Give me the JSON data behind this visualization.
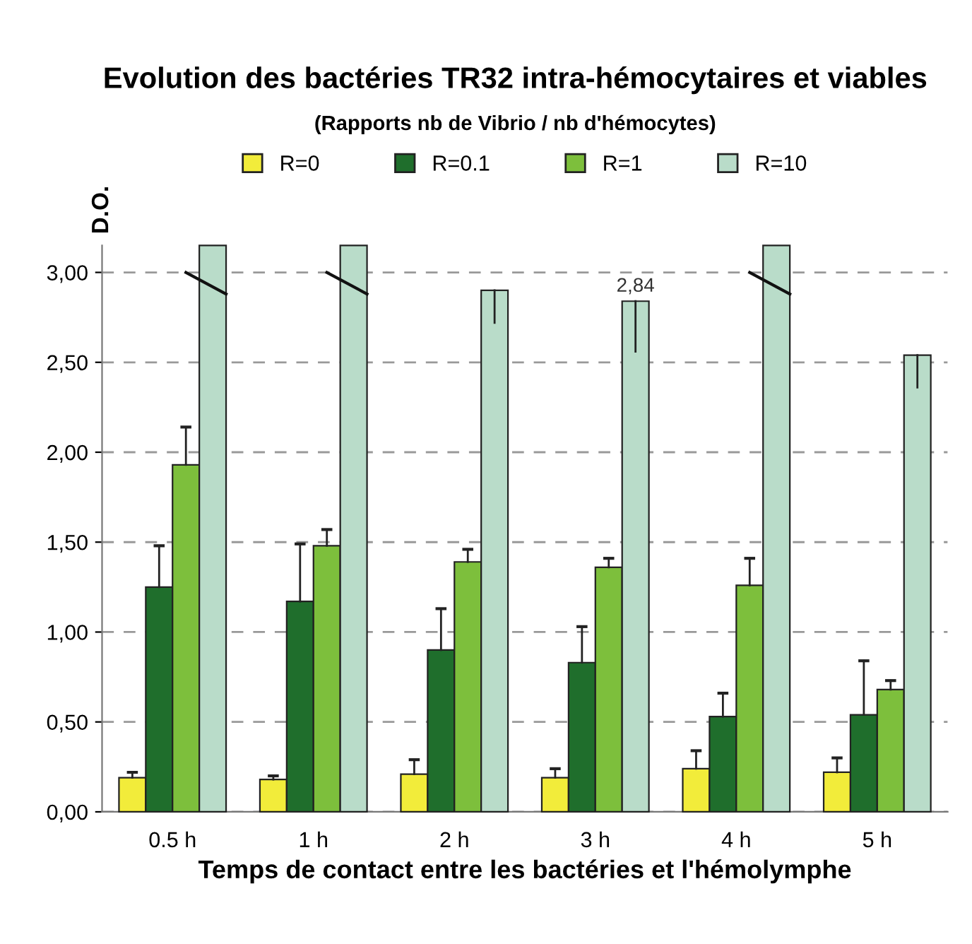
{
  "chart_data": {
    "type": "bar",
    "title": "Evolution des bactéries TR32 intra-hémocytaires et viables",
    "subtitle": "(Rapports nb de Vibrio / nb d'hémocytes)",
    "xlabel": "Temps de contact entre les bactéries et l'hémolymphe",
    "ylabel": "D.O.",
    "categories": [
      "0.5 h",
      "1 h",
      "2 h",
      "3 h",
      "4 h",
      "5 h"
    ],
    "series": [
      {
        "name": "R=0",
        "color": "#f2ec3a",
        "values": [
          0.19,
          0.18,
          0.21,
          0.19,
          0.24,
          0.22
        ],
        "errors": [
          [
            0.19,
            0.22
          ],
          [
            0.18,
            0.2
          ],
          [
            0.21,
            0.29
          ],
          [
            0.19,
            0.24
          ],
          [
            0.24,
            0.34
          ],
          [
            0.22,
            0.3
          ]
        ]
      },
      {
        "name": "R=0.1",
        "color": "#1f6e2c",
        "values": [
          1.25,
          1.17,
          0.9,
          0.83,
          0.53,
          0.54
        ],
        "errors": [
          [
            1.25,
            1.48
          ],
          [
            1.17,
            1.49
          ],
          [
            0.9,
            1.13
          ],
          [
            0.83,
            1.03
          ],
          [
            0.53,
            0.66
          ],
          [
            0.54,
            0.84
          ]
        ]
      },
      {
        "name": "R=1",
        "color": "#7dbf3c",
        "values": [
          1.93,
          1.48,
          1.39,
          1.36,
          1.26,
          0.68
        ],
        "errors": [
          [
            1.93,
            2.14
          ],
          [
            1.48,
            1.57
          ],
          [
            1.39,
            1.46
          ],
          [
            1.36,
            1.41
          ],
          [
            1.26,
            1.41
          ],
          [
            0.68,
            0.73
          ]
        ]
      },
      {
        "name": "R=10",
        "color": "#b9dcc9",
        "values": [
          3.15,
          3.15,
          2.9,
          2.84,
          3.15,
          2.54
        ],
        "errors": [
          null,
          null,
          [
            2.72,
            2.9
          ],
          [
            2.56,
            2.84
          ],
          null,
          [
            2.36,
            2.54
          ]
        ],
        "value_labels": [
          null,
          null,
          null,
          "2,84",
          null,
          null
        ]
      }
    ],
    "ylim": [
      0,
      3.15
    ],
    "yticks": [
      {
        "value": 0,
        "label": "0,00"
      },
      {
        "value": 0.5,
        "label": "0,50"
      },
      {
        "value": 1,
        "label": "1,00"
      },
      {
        "value": 1.5,
        "label": "1,50"
      },
      {
        "value": 2,
        "label": "2,00"
      },
      {
        "value": 2.5,
        "label": "2,50"
      },
      {
        "value": 3,
        "label": "3,00"
      }
    ],
    "grid": "y",
    "legend": "top"
  }
}
